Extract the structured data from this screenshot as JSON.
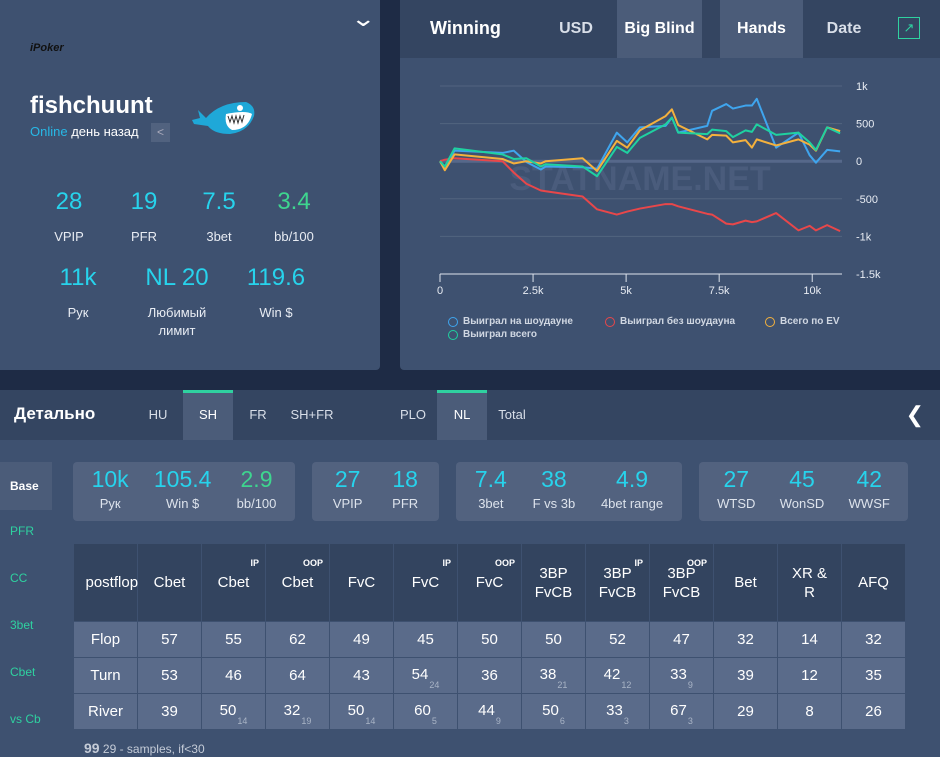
{
  "profile": {
    "room": "iPoker",
    "name": "fishchuunt",
    "online": "Online",
    "last_seen": "день назад",
    "stats": [
      {
        "value": "28",
        "label": "VPIP"
      },
      {
        "value": "19",
        "label": "PFR"
      },
      {
        "value": "7.5",
        "label": "3bet"
      },
      {
        "value": "3.4",
        "label": "bb/100"
      },
      {
        "value": "11k",
        "label": "Рук"
      },
      {
        "value": "NL 20",
        "label": "Любимый лимит"
      },
      {
        "value": "119.6",
        "label": "Win $"
      }
    ]
  },
  "chart_panel": {
    "title": "Winning",
    "tabs": [
      "USD",
      "Big Blind",
      "Hands",
      "Date"
    ],
    "active_tabs": [
      "Big Blind",
      "Hands"
    ],
    "watermark": "STATNAME.NET"
  },
  "chart_data": {
    "type": "line",
    "xlim": [
      0,
      10800
    ],
    "ylim": [
      -1500,
      1000
    ],
    "x_ticks": [
      "0",
      "2.5k",
      "5k",
      "7.5k",
      "10k"
    ],
    "x_tick_values": [
      0,
      2500,
      5000,
      7500,
      10000
    ],
    "y_ticks": [
      "1k",
      "500",
      "0",
      "-500",
      "-1k",
      "-1.5k"
    ],
    "y_tick_values": [
      1000,
      500,
      0,
      -500,
      -1000,
      -1500
    ],
    "grid": true,
    "legend": "bottom",
    "x": [
      0,
      130,
      390,
      1680,
      1980,
      2320,
      2710,
      2840,
      3830,
      4220,
      4750,
      5030,
      5370,
      6060,
      6230,
      6400,
      7180,
      7310,
      7690,
      7870,
      8210,
      8380,
      8510,
      9030,
      9630,
      9930,
      10100,
      10400,
      10750
    ],
    "series": [
      {
        "name": "Выиграл на шоудауне",
        "color": "#3fa5ee",
        "values": [
          -10,
          -80,
          140,
          110,
          140,
          -10,
          -110,
          -70,
          -80,
          -100,
          380,
          250,
          450,
          470,
          580,
          380,
          470,
          670,
          760,
          700,
          740,
          740,
          830,
          180,
          380,
          80,
          -20,
          150,
          130
        ]
      },
      {
        "name": "Выиграл без шоудауна",
        "color": "#e8474a",
        "values": [
          0,
          20,
          40,
          0,
          -150,
          -300,
          -390,
          -400,
          -470,
          -640,
          -710,
          -670,
          -630,
          -570,
          -570,
          -600,
          -700,
          -710,
          -830,
          -840,
          -790,
          -810,
          -800,
          -690,
          -920,
          -860,
          -920,
          -850,
          -930
        ]
      },
      {
        "name": "Всего по EV",
        "color": "#f4b13d",
        "values": [
          0,
          -120,
          90,
          30,
          -30,
          0,
          -30,
          0,
          40,
          -130,
          270,
          180,
          410,
          600,
          690,
          480,
          290,
          350,
          340,
          250,
          280,
          180,
          290,
          210,
          290,
          220,
          140,
          450,
          400
        ]
      },
      {
        "name": "Выиграл всего",
        "color": "#1fd1a0",
        "values": [
          0,
          -70,
          170,
          90,
          30,
          40,
          -70,
          -40,
          -70,
          -200,
          190,
          110,
          310,
          490,
          580,
          380,
          360,
          420,
          400,
          320,
          410,
          390,
          490,
          350,
          380,
          250,
          150,
          450,
          370
        ]
      }
    ]
  },
  "detail": {
    "title": "Детально",
    "tabs": [
      "HU",
      "SH",
      "FR",
      "SH+FR",
      "PLO",
      "NL",
      "Total"
    ],
    "active_tabs": [
      "SH",
      "NL"
    ],
    "side": [
      "Base",
      "PFR",
      "CC",
      "3bet",
      "Cbet",
      "vs Cb"
    ],
    "cards": [
      [
        {
          "value": "10k",
          "label": "Рук"
        },
        {
          "value": "105.4",
          "label": "Win $"
        },
        {
          "value": "2.9",
          "label": "bb/100"
        }
      ],
      [
        {
          "value": "27",
          "label": "VPIP"
        },
        {
          "value": "18",
          "label": "PFR"
        }
      ],
      [
        {
          "value": "7.4",
          "label": "3bet"
        },
        {
          "value": "38",
          "label": "F vs 3b"
        },
        {
          "value": "4.9",
          "label": "4bet range"
        }
      ],
      [
        {
          "value": "27",
          "label": "WTSD"
        },
        {
          "value": "45",
          "label": "WonSD"
        },
        {
          "value": "42",
          "label": "WWSF"
        }
      ]
    ],
    "table": {
      "headers": [
        {
          "t": "postflop"
        },
        {
          "t": "Cbet"
        },
        {
          "t": "Cbet",
          "s": "IP"
        },
        {
          "t": "Cbet",
          "s": "OOP"
        },
        {
          "t": "FvC"
        },
        {
          "t": "FvC",
          "s": "IP"
        },
        {
          "t": "FvC",
          "s": "OOP"
        },
        {
          "t": "3BP FvCB"
        },
        {
          "t": "3BP FvCB",
          "s": "IP"
        },
        {
          "t": "3BP FvCB",
          "s": "OOP"
        },
        {
          "t": "Bet"
        },
        {
          "t": "XR & R"
        },
        {
          "t": "AFQ"
        }
      ],
      "rows": [
        [
          "Flop",
          "57",
          "55",
          "62",
          "49",
          "45",
          "50",
          "50",
          "52",
          "47",
          "32",
          "14",
          "32"
        ],
        [
          "Turn",
          "53",
          "46",
          "64",
          "43",
          "54|24",
          "36",
          "38|21",
          "42|12",
          "33|9",
          "39",
          "12",
          "35"
        ],
        [
          "River",
          "39",
          "50|14",
          "32|19",
          "50|14",
          "60|5",
          "44|9",
          "50|6",
          "33|3",
          "67|3",
          "29",
          "8",
          "26"
        ]
      ]
    },
    "note_sample": "99",
    "note": "29 - samples, if<30"
  }
}
